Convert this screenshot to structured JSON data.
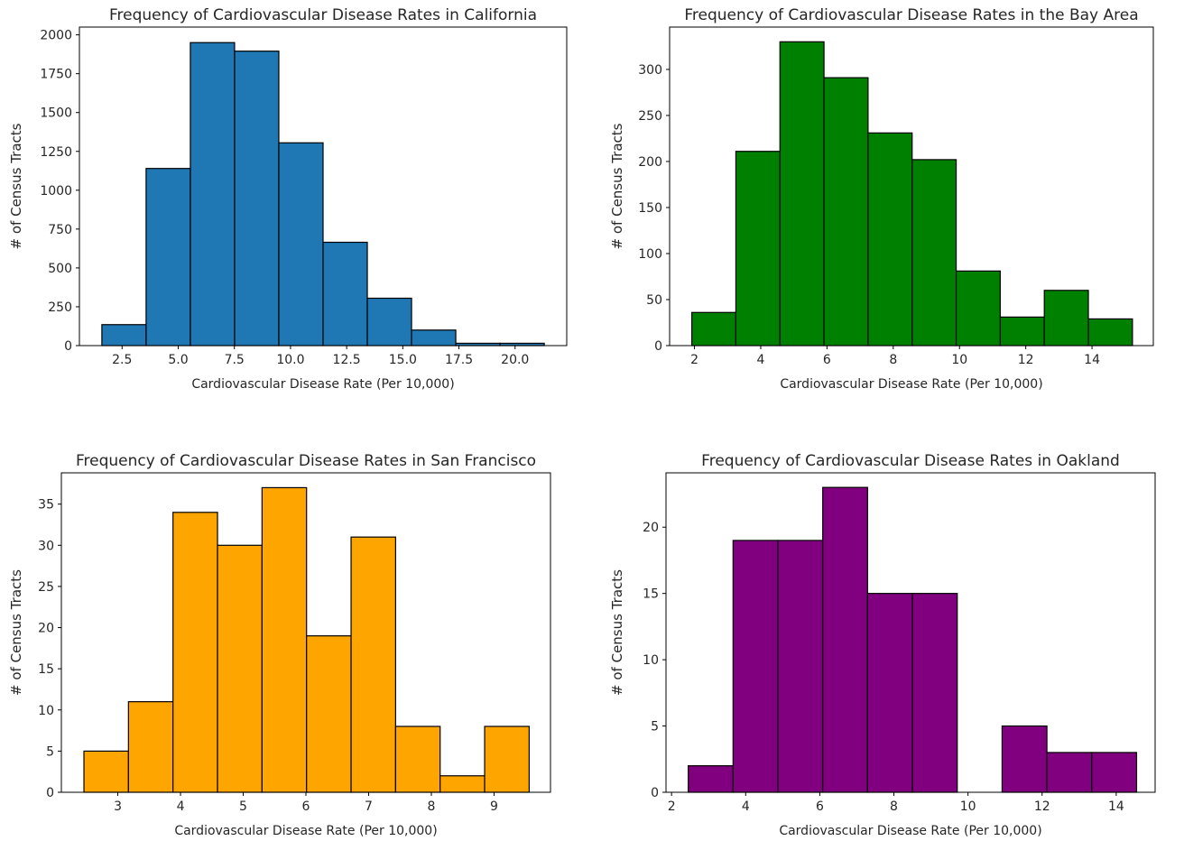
{
  "chart_data": [
    {
      "type": "bar",
      "title": "Frequency of Cardiovascular Disease Rates in California",
      "xlabel": "Cardiovascular Disease Rate (Per 10,000)",
      "ylabel": "# of Census Tracts",
      "color": "#1f77b4",
      "xlim": [
        0.6,
        22.3
      ],
      "ylim": [
        0,
        2050
      ],
      "xticks": [
        2.5,
        5.0,
        7.5,
        10.0,
        12.5,
        15.0,
        17.5,
        20.0
      ],
      "xtick_labels": [
        "2.5",
        "5.0",
        "7.5",
        "10.0",
        "12.5",
        "15.0",
        "17.5",
        "20.0"
      ],
      "yticks": [
        0,
        250,
        500,
        750,
        1000,
        1250,
        1500,
        1750,
        2000
      ],
      "ytick_labels": [
        "0",
        "250",
        "500",
        "750",
        "1000",
        "1250",
        "1500",
        "1750",
        "2000"
      ],
      "bin_edges": [
        1.6,
        3.57,
        5.54,
        7.51,
        9.48,
        11.45,
        13.42,
        15.39,
        17.36,
        19.33,
        21.3
      ],
      "values": [
        135,
        1140,
        1950,
        1895,
        1305,
        665,
        305,
        100,
        15,
        15
      ]
    },
    {
      "type": "bar",
      "title": "Frequency of Cardiovascular Disease Rates in the Bay Area",
      "xlabel": "Cardiovascular Disease Rate (Per 10,000)",
      "ylabel": "# of Census Tracts",
      "color": "#008000",
      "xlim": [
        1.25,
        15.85
      ],
      "ylim": [
        0,
        346
      ],
      "xticks": [
        2,
        4,
        6,
        8,
        10,
        12,
        14
      ],
      "xtick_labels": [
        "2",
        "4",
        "6",
        "8",
        "10",
        "12",
        "14"
      ],
      "yticks": [
        0,
        50,
        100,
        150,
        200,
        250,
        300
      ],
      "ytick_labels": [
        "0",
        "50",
        "100",
        "150",
        "200",
        "250",
        "300"
      ],
      "bin_edges": [
        1.92,
        3.25,
        4.58,
        5.91,
        7.24,
        8.57,
        9.9,
        11.23,
        12.56,
        13.89,
        15.22
      ],
      "values": [
        36,
        211,
        330,
        291,
        231,
        202,
        81,
        31,
        60,
        29
      ]
    },
    {
      "type": "bar",
      "title": "Frequency of Cardiovascular Disease Rates in San Francisco",
      "xlabel": "Cardiovascular Disease Rate (Per 10,000)",
      "ylabel": "# of Census Tracts",
      "color": "#ffa500",
      "xlim": [
        2.1,
        9.9
      ],
      "ylim": [
        0,
        38.8
      ],
      "xticks": [
        3,
        4,
        5,
        6,
        7,
        8,
        9
      ],
      "xtick_labels": [
        "3",
        "4",
        "5",
        "6",
        "7",
        "8",
        "9"
      ],
      "yticks": [
        0,
        5,
        10,
        15,
        20,
        25,
        30,
        35
      ],
      "ytick_labels": [
        "0",
        "5",
        "10",
        "15",
        "20",
        "25",
        "30",
        "35"
      ],
      "bin_edges": [
        2.46,
        3.17,
        3.88,
        4.59,
        5.3,
        6.01,
        6.72,
        7.43,
        8.14,
        8.85,
        9.56
      ],
      "values": [
        5,
        11,
        34,
        30,
        37,
        19,
        31,
        8,
        2,
        8
      ]
    },
    {
      "type": "bar",
      "title": "Frequency of Cardiovascular Disease Rates in Oakland",
      "xlabel": "Cardiovascular Disease Rate (Per 10,000)",
      "ylabel": "# of Census Tracts",
      "color": "#800080",
      "xlim": [
        1.85,
        15.05
      ],
      "ylim": [
        0,
        24.1
      ],
      "xticks": [
        2,
        4,
        6,
        8,
        10,
        12,
        14
      ],
      "xtick_labels": [
        "2",
        "4",
        "6",
        "8",
        "10",
        "12",
        "14"
      ],
      "yticks": [
        0,
        5,
        10,
        15,
        20
      ],
      "ytick_labels": [
        "0",
        "5",
        "10",
        "15",
        "20"
      ],
      "bin_edges": [
        2.45,
        3.66,
        4.87,
        6.08,
        7.29,
        8.5,
        9.71,
        10.92,
        12.13,
        13.34,
        14.55
      ],
      "values": [
        2,
        19,
        19,
        23,
        15,
        15,
        0,
        5,
        3,
        3
      ]
    }
  ]
}
